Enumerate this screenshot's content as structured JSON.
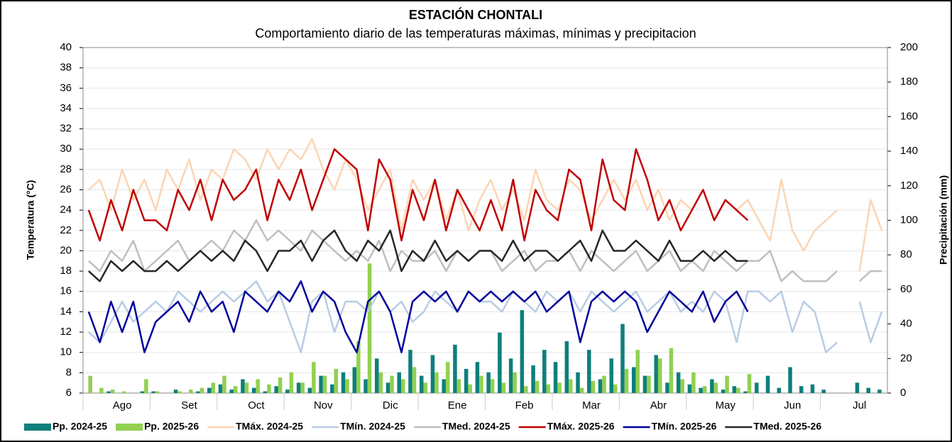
{
  "chart_data": {
    "type": "combo",
    "title": "ESTACIÓN CHONTALI",
    "subtitle": "Comportamiento diario de las temperaturas máximas, mínimas y precipitacion",
    "y_label": "Temperatura (°C)",
    "y2_label": "Precipitación (mm)",
    "categories": [
      null,
      null,
      null,
      "Ago",
      null,
      null,
      null,
      null,
      null,
      "Set",
      null,
      null,
      null,
      null,
      null,
      "Oct",
      null,
      null,
      null,
      null,
      null,
      "Nov",
      null,
      null,
      null,
      null,
      null,
      "Dic",
      null,
      null,
      null,
      null,
      null,
      "Ene",
      null,
      null,
      null,
      null,
      null,
      "Feb",
      null,
      null,
      null,
      null,
      null,
      "Mar",
      null,
      null,
      null,
      null,
      null,
      "Abr",
      null,
      null,
      null,
      null,
      null,
      "May",
      null,
      null,
      null,
      null,
      null,
      "Jun",
      null,
      null,
      null,
      null,
      null,
      "Jul",
      null,
      null
    ],
    "ylim": [
      6,
      40
    ],
    "yticks": [
      6,
      8,
      10,
      12,
      14,
      16,
      18,
      20,
      22,
      24,
      26,
      28,
      30,
      32,
      34,
      36,
      38,
      40
    ],
    "y2lim": [
      0,
      200
    ],
    "y2ticks": [
      0,
      20,
      40,
      60,
      80,
      100,
      120,
      140,
      160,
      180,
      200
    ],
    "grid": true,
    "series": [
      {
        "name": "Pp. 2024-25",
        "type": "bar",
        "axis": "y2",
        "color": "#0e7f7c",
        "values": [
          0,
          0,
          1,
          0,
          0,
          1,
          1,
          0,
          2,
          0,
          1,
          3,
          5,
          2,
          8,
          3,
          1,
          4,
          2,
          6,
          3,
          10,
          5,
          12,
          15,
          8,
          20,
          6,
          12,
          25,
          10,
          22,
          8,
          28,
          14,
          18,
          12,
          35,
          20,
          48,
          16,
          25,
          18,
          30,
          12,
          25,
          8,
          20,
          40,
          15,
          10,
          22,
          6,
          12,
          5,
          3,
          8,
          2,
          4,
          1,
          6,
          10,
          3,
          15,
          4,
          5,
          2,
          0,
          0,
          6,
          3,
          2
        ]
      },
      {
        "name": "Pp. 2025-26",
        "type": "bar",
        "axis": "y2",
        "color": "#92d050",
        "values": [
          10,
          3,
          2,
          1,
          0,
          8,
          1,
          0,
          1,
          2,
          3,
          6,
          10,
          4,
          6,
          8,
          5,
          9,
          12,
          6,
          18,
          10,
          14,
          8,
          30,
          75,
          12,
          10,
          8,
          15,
          6,
          12,
          18,
          8,
          5,
          10,
          8,
          6,
          12,
          4,
          7,
          5,
          6,
          8,
          3,
          7,
          10,
          5,
          14,
          25,
          10,
          20,
          26,
          8,
          12,
          4,
          6,
          10,
          3,
          11,
          null,
          null,
          null,
          null,
          null,
          null,
          null,
          null,
          null,
          null,
          null,
          null
        ]
      },
      {
        "name": "TMáx. 2024-25",
        "type": "line",
        "color": "#fcd5b4",
        "values": [
          26,
          27,
          24,
          28,
          25,
          27,
          24,
          28,
          26,
          29,
          25,
          28,
          27,
          30,
          29,
          27,
          30,
          28,
          30,
          29,
          31,
          28,
          26,
          29,
          27,
          24,
          26,
          28,
          22,
          27,
          25,
          27,
          23,
          26,
          22,
          25,
          27,
          24,
          26,
          23,
          28,
          25,
          24,
          27,
          26,
          23,
          25,
          27,
          25,
          27,
          24,
          26,
          23,
          25,
          24,
          26,
          23,
          25,
          24,
          25,
          23,
          21,
          27,
          22,
          20,
          22,
          23,
          24,
          null,
          18,
          25,
          22
        ]
      },
      {
        "name": "TMín. 2024-25",
        "type": "line",
        "color": "#b8cce4",
        "values": [
          12,
          11,
          13,
          15,
          13,
          14,
          15,
          14,
          16,
          15,
          14,
          15,
          16,
          15,
          16,
          17,
          15,
          16,
          13,
          10,
          15,
          16,
          12,
          15,
          15,
          14,
          16,
          14,
          15,
          13,
          14,
          16,
          15,
          14,
          16,
          15,
          15,
          14,
          16,
          15,
          14,
          16,
          15,
          16,
          14,
          16,
          15,
          14,
          15,
          16,
          14,
          15,
          16,
          14,
          15,
          14,
          16,
          15,
          11,
          16,
          16,
          15,
          16,
          12,
          15,
          14,
          10,
          11,
          null,
          15,
          11,
          14
        ]
      },
      {
        "name": "TMed. 2024-25",
        "type": "line",
        "color": "#bfbfbf",
        "values": [
          19,
          18,
          20,
          19,
          21,
          18,
          19,
          20,
          21,
          19,
          20,
          21,
          20,
          22,
          21,
          23,
          21,
          22,
          21,
          20,
          22,
          21,
          20,
          19,
          20,
          19,
          21,
          18,
          20,
          19,
          19,
          20,
          18,
          20,
          19,
          20,
          20,
          18,
          19,
          20,
          18,
          19,
          19,
          20,
          18,
          20,
          19,
          18,
          19,
          20,
          18,
          19,
          20,
          18,
          19,
          18,
          20,
          19,
          18,
          19,
          19,
          20,
          17,
          18,
          17,
          17,
          17,
          18,
          null,
          17,
          18,
          18
        ]
      },
      {
        "name": "TMáx. 2025-26",
        "type": "line",
        "color": "#c00000",
        "values": [
          24,
          21,
          25,
          22,
          26,
          23,
          23,
          22,
          26,
          24,
          27,
          23,
          27,
          25,
          26,
          28,
          23,
          27,
          25,
          28,
          24,
          27,
          30,
          29,
          28,
          22,
          29,
          27,
          21,
          26,
          23,
          27,
          22,
          26,
          24,
          22,
          25,
          22,
          27,
          21,
          26,
          24,
          23,
          28,
          27,
          22,
          29,
          25,
          24,
          30,
          27,
          23,
          25,
          22,
          24,
          26,
          23,
          25,
          24,
          23,
          null,
          null,
          null,
          null,
          null,
          null,
          null,
          null,
          null,
          null,
          null,
          null
        ]
      },
      {
        "name": "TMín. 2025-26",
        "type": "line",
        "color": "#00009c",
        "values": [
          14,
          11,
          15,
          12,
          15,
          10,
          13,
          14,
          15,
          13,
          16,
          14,
          15,
          12,
          16,
          15,
          14,
          16,
          15,
          17,
          14,
          16,
          15,
          12,
          10,
          15,
          16,
          14,
          10,
          15,
          16,
          15,
          16,
          14,
          16,
          15,
          16,
          15,
          16,
          15,
          16,
          14,
          15,
          16,
          11,
          15,
          16,
          15,
          16,
          15,
          12,
          14,
          16,
          15,
          14,
          16,
          13,
          15,
          16,
          14,
          null,
          null,
          null,
          null,
          null,
          null,
          null,
          null,
          null,
          null,
          null,
          null
        ]
      },
      {
        "name": "TMed. 2025-26",
        "type": "line",
        "color": "#262626",
        "values": [
          18,
          17,
          19,
          18,
          19,
          18,
          18,
          19,
          18,
          19,
          20,
          19,
          20,
          19,
          21,
          20,
          18,
          20,
          20,
          21,
          19,
          21,
          22,
          20,
          19,
          21,
          20,
          22,
          18,
          20,
          19,
          21,
          19,
          20,
          19,
          20,
          20,
          19,
          21,
          19,
          20,
          20,
          19,
          20,
          21,
          19,
          22,
          20,
          20,
          21,
          20,
          19,
          21,
          19,
          19,
          20,
          19,
          20,
          19,
          19,
          null,
          null,
          null,
          null,
          null,
          null,
          null,
          null,
          null,
          null,
          null,
          null
        ]
      }
    ]
  }
}
